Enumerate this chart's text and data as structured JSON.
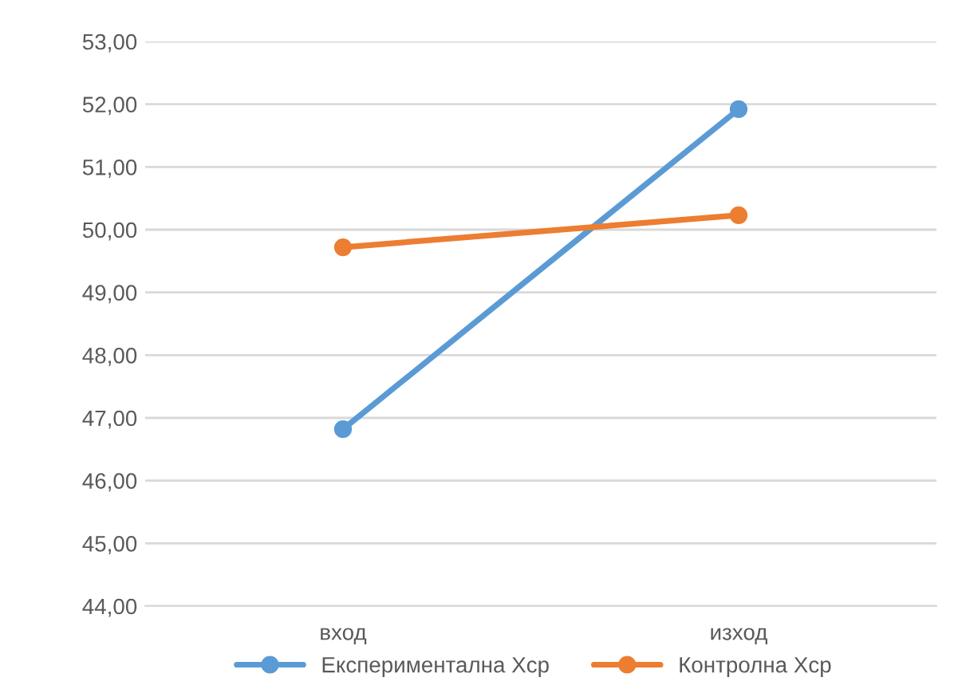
{
  "chart_data": {
    "type": "line",
    "categories": [
      "вход",
      "изход"
    ],
    "series": [
      {
        "name": "Експериментална Хср",
        "color": "#5b9bd5",
        "values": [
          46.82,
          51.92
        ]
      },
      {
        "name": "Контролна Хср",
        "color": "#ed7d31",
        "values": [
          49.72,
          50.23
        ]
      }
    ],
    "ylim": [
      44,
      53
    ],
    "yticks": [
      {
        "value": 44,
        "label": "44,00"
      },
      {
        "value": 45,
        "label": "45,00"
      },
      {
        "value": 46,
        "label": "46,00"
      },
      {
        "value": 47,
        "label": "47,00"
      },
      {
        "value": 48,
        "label": "48,00"
      },
      {
        "value": 49,
        "label": "49,00"
      },
      {
        "value": 50,
        "label": "50,00"
      },
      {
        "value": 51,
        "label": "51,00"
      },
      {
        "value": 52,
        "label": "52,00"
      },
      {
        "value": 53,
        "label": "53,00"
      }
    ],
    "grid": "y",
    "legend": "bottom",
    "marker": "circle",
    "line_style": "solid"
  }
}
